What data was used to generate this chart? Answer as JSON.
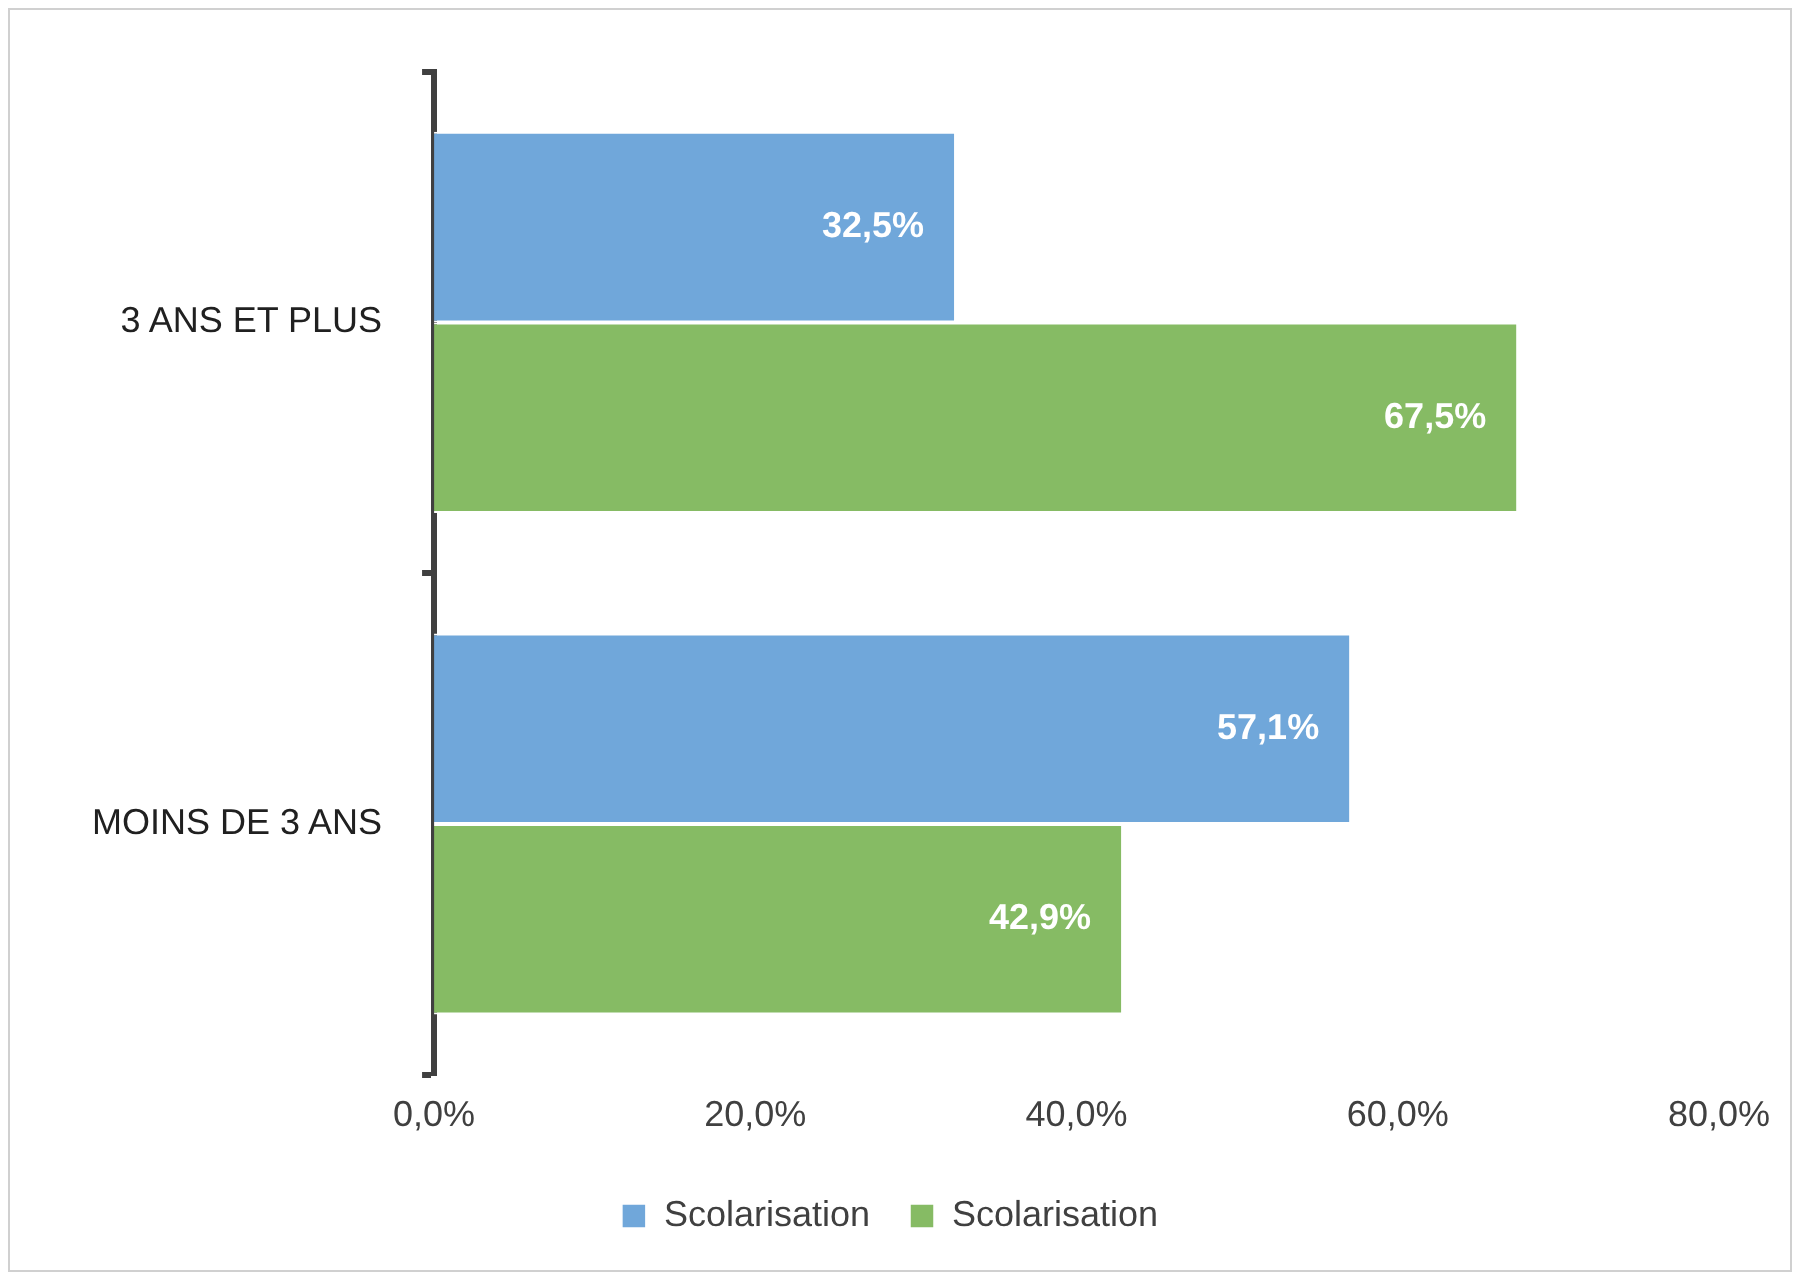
{
  "chart_data": {
    "type": "bar",
    "orientation": "horizontal",
    "categories": [
      "3 ANS ET PLUS",
      "MOINS DE 3 ANS"
    ],
    "series": [
      {
        "name": "Scolarisation",
        "color": "#70a7da",
        "values": [
          32.5,
          57.1
        ],
        "value_labels": [
          "32,5%",
          "57,1%"
        ]
      },
      {
        "name": "Scolarisation",
        "color": "#86bb64",
        "values": [
          67.5,
          42.9
        ],
        "value_labels": [
          "67,5%",
          "42,9%"
        ]
      }
    ],
    "xlim": [
      0,
      80
    ],
    "xticks": [
      {
        "value": 0,
        "label": "0,0%"
      },
      {
        "value": 20,
        "label": "20,0%"
      },
      {
        "value": 40,
        "label": "40,0%"
      },
      {
        "value": 60,
        "label": "60,0%"
      },
      {
        "value": 80,
        "label": "80,0%"
      }
    ],
    "legend": "bottom"
  }
}
